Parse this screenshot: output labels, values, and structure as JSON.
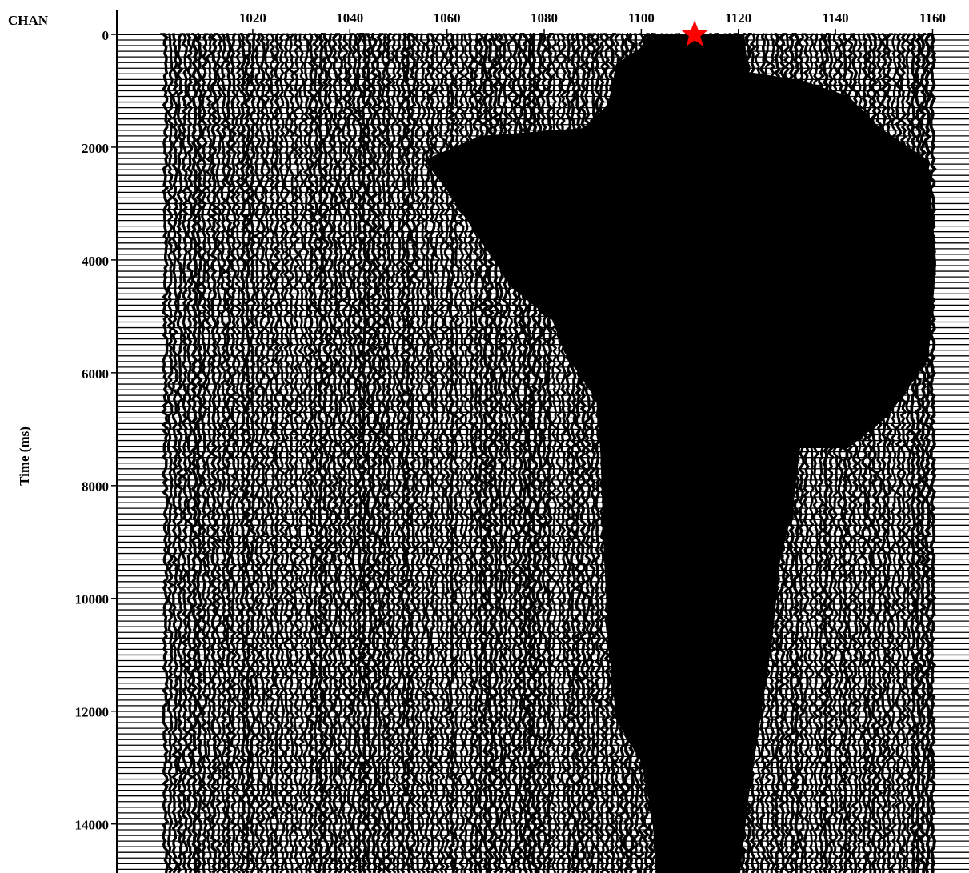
{
  "chart_data": {
    "type": "seismic",
    "x_label": "CHAN",
    "y_label": "Time (ms)",
    "xlim": [
      992,
      1167.5
    ],
    "ylim": [
      0,
      14870
    ],
    "xticks": [
      1020,
      1040,
      1060,
      1080,
      1100,
      1120,
      1140,
      1160
    ],
    "yticks": [
      0,
      2000,
      4000,
      6000,
      8000,
      10000,
      12000,
      14000
    ],
    "trace_range": [
      1002,
      1160
    ],
    "source": {
      "channel": 1111,
      "time": 0,
      "color": "#ff0000"
    }
  }
}
